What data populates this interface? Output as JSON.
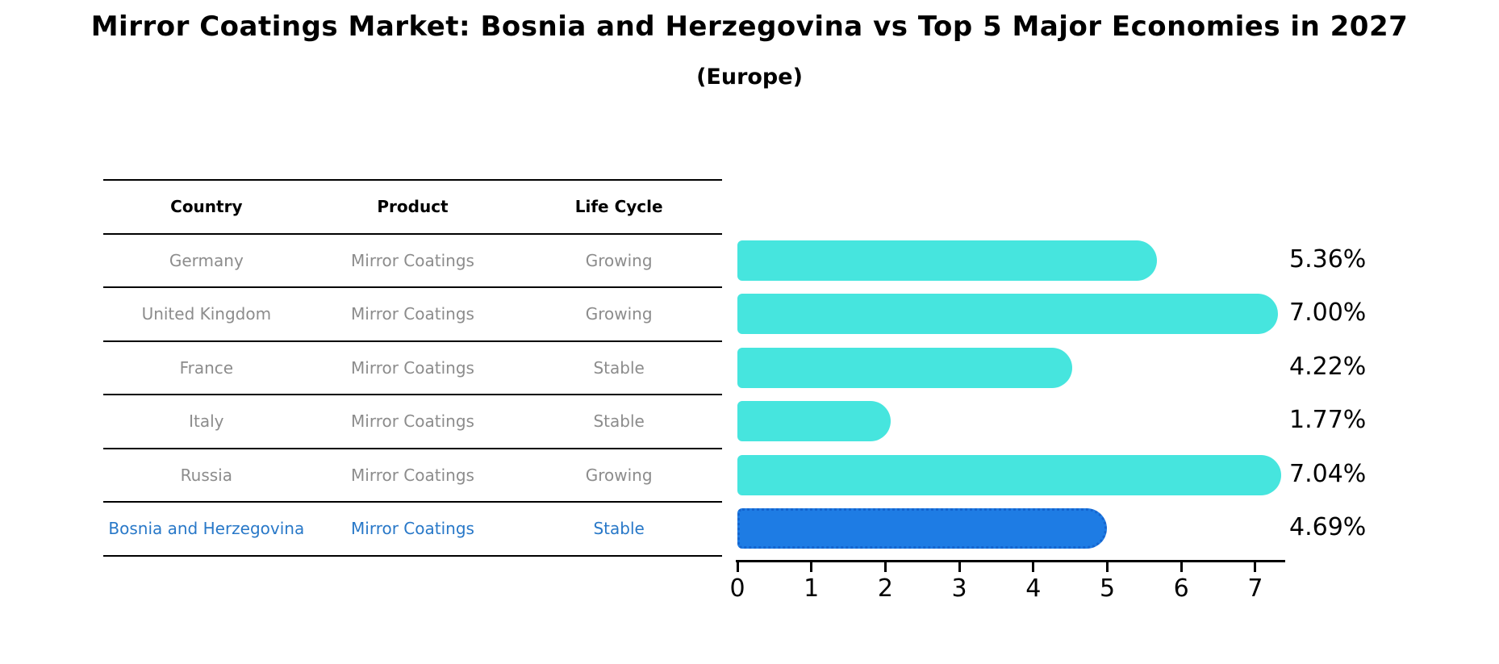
{
  "figure": {
    "title": "Mirror Coatings Market: Bosnia and Herzegovina vs Top 5 Major Economies in 2027",
    "subtitle": "(Europe)"
  },
  "table": {
    "columns": [
      "Country",
      "Product",
      "Life Cycle"
    ],
    "rows": [
      {
        "country": "Germany",
        "product": "Mirror Coatings",
        "life_cycle": "Growing",
        "highlighted": false
      },
      {
        "country": "United Kingdom",
        "product": "Mirror Coatings",
        "life_cycle": "Growing",
        "highlighted": false
      },
      {
        "country": "France",
        "product": "Mirror Coatings",
        "life_cycle": "Stable",
        "highlighted": false
      },
      {
        "country": "Italy",
        "product": "Mirror Coatings",
        "life_cycle": "Stable",
        "highlighted": false
      },
      {
        "country": "Russia",
        "product": "Mirror Coatings",
        "life_cycle": "Growing",
        "highlighted": false
      },
      {
        "country": "Bosnia and Herzegovina",
        "product": "Mirror Coatings",
        "life_cycle": "Stable",
        "highlighted": true
      }
    ]
  },
  "chart_data": {
    "type": "bar",
    "orientation": "horizontal",
    "title": "Mirror Coatings Market: Bosnia and Herzegovina vs Top 5 Major Economies in 2027",
    "subtitle": "(Europe)",
    "categories": [
      "Germany",
      "United Kingdom",
      "France",
      "Italy",
      "Russia",
      "Bosnia and Herzegovina"
    ],
    "values": [
      5.36,
      7.0,
      4.22,
      1.77,
      7.04,
      4.69
    ],
    "value_labels": [
      "5.36%",
      "7.00%",
      "4.22%",
      "1.77%",
      "7.04%",
      "4.69%"
    ],
    "highlight_index": 5,
    "xlabel": "",
    "ylabel": "",
    "x_ticks": [
      0,
      1,
      2,
      3,
      4,
      5,
      6,
      7
    ],
    "xlim": [
      0,
      7.37
    ],
    "grid": false,
    "legend": false
  },
  "colors": {
    "bar": "#46E5DE",
    "highlight_bar": "#1E7CE4",
    "highlight_border": "#1565CF",
    "highlight_text": "#2878C8",
    "row_text": "#8C8C8C",
    "header_text": "#000000",
    "axis": "#000000"
  }
}
